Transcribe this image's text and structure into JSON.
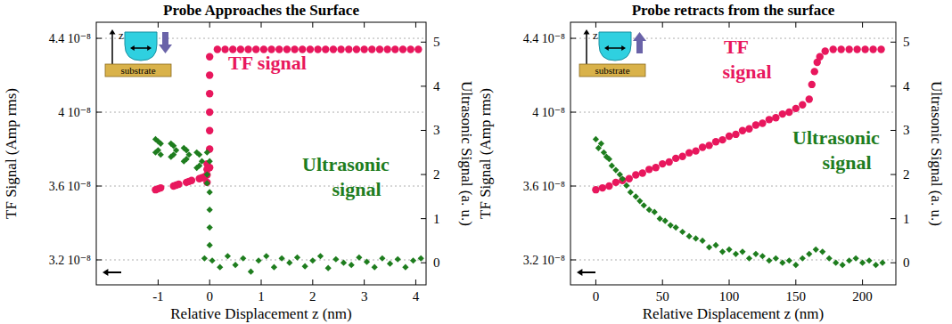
{
  "chart_data": [
    {
      "type": "scatter",
      "title": "Probe Approaches the Surface",
      "x_label": "Relative Displacement  z (nm)",
      "y_label": "TF Signal (Amp rms)",
      "y2_label": "Ultrasonic Signal (a. u.)",
      "xlim": [
        -2.2,
        4.2
      ],
      "xticks": [
        -1,
        0,
        1,
        2,
        3,
        4
      ],
      "ylim": [
        3.065e-08,
        4.487e-08
      ],
      "yticks": [
        {
          "value": 3.2e-08,
          "label": "3.2 10⁻⁸"
        },
        {
          "value": 3.6e-08,
          "label": "3.6 10⁻⁸"
        },
        {
          "value": 4e-08,
          "label": "4 10⁻⁸"
        },
        {
          "value": 4.4e-08,
          "label": "4.4 10⁻⁸"
        }
      ],
      "y2lim": [
        -0.5,
        5.45
      ],
      "y2ticks": [
        0,
        1,
        2,
        3,
        4,
        5
      ],
      "grid": true,
      "annotations": [
        "z",
        "substrate"
      ],
      "series": [
        {
          "name": "TF signal",
          "color": "#e8175d",
          "marker": "circle",
          "x": [
            -1.05,
            -1.0,
            -0.95,
            -0.7,
            -0.65,
            -0.6,
            -0.45,
            -0.4,
            -0.35,
            -0.2,
            -0.15,
            -0.1,
            -0.05,
            -0.05,
            -0.05,
            -0.05,
            0,
            0,
            0,
            0,
            0,
            0,
            0,
            0.15,
            0.3,
            0.45,
            0.6,
            0.75,
            0.9,
            1.05,
            1.2,
            1.35,
            1.5,
            1.65,
            1.8,
            1.95,
            2.1,
            2.25,
            2.4,
            2.55,
            2.7,
            2.85,
            3.0,
            3.15,
            3.3,
            3.45,
            3.6,
            3.75,
            3.9,
            4.05
          ],
          "values": [
            3.58e-08,
            3.585e-08,
            3.59e-08,
            3.6e-08,
            3.605e-08,
            3.61e-08,
            3.62e-08,
            3.625e-08,
            3.63e-08,
            3.64e-08,
            3.645e-08,
            3.65e-08,
            3.62e-08,
            3.66e-08,
            3.69e-08,
            3.72e-08,
            3.7e-08,
            3.8e-08,
            3.9e-08,
            4e-08,
            4.1e-08,
            4.2e-08,
            4.3e-08,
            4.34e-08,
            4.34e-08,
            4.34e-08,
            4.34e-08,
            4.34e-08,
            4.34e-08,
            4.34e-08,
            4.34e-08,
            4.34e-08,
            4.34e-08,
            4.34e-08,
            4.34e-08,
            4.34e-08,
            4.34e-08,
            4.34e-08,
            4.34e-08,
            4.34e-08,
            4.34e-08,
            4.34e-08,
            4.34e-08,
            4.34e-08,
            4.34e-08,
            4.34e-08,
            4.34e-08,
            4.34e-08,
            4.34e-08,
            4.34e-08
          ]
        },
        {
          "name": "Ultrasonic signal",
          "color": "#1e7d1e",
          "marker": "diamond",
          "axis": "y2",
          "x": [
            -1.05,
            -1.05,
            -1.0,
            -1.0,
            -0.95,
            -0.95,
            -0.75,
            -0.75,
            -0.7,
            -0.7,
            -0.65,
            -0.5,
            -0.5,
            -0.45,
            -0.45,
            -0.4,
            -0.25,
            -0.25,
            -0.2,
            -0.2,
            -0.15,
            -0.05,
            -0.05,
            -0.05,
            0,
            0,
            0,
            0,
            0,
            -0.1,
            0.05,
            0.2,
            0.35,
            0.5,
            0.65,
            0.8,
            0.95,
            1.1,
            1.25,
            1.4,
            1.55,
            1.7,
            1.85,
            2.0,
            2.15,
            2.3,
            2.45,
            2.6,
            2.75,
            2.9,
            3.05,
            3.2,
            3.35,
            3.5,
            3.65,
            3.8,
            3.95,
            4.1
          ],
          "values": [
            2.8,
            2.5,
            2.75,
            2.55,
            2.7,
            2.45,
            2.7,
            2.4,
            2.65,
            2.45,
            2.55,
            2.6,
            2.3,
            2.55,
            2.35,
            2.45,
            2.5,
            2.15,
            2.45,
            2.2,
            2.3,
            2.5,
            2.0,
            1.8,
            2.3,
            1.6,
            1.2,
            0.8,
            0.4,
            0.1,
            0.05,
            -0.1,
            0.15,
            -0.05,
            0.1,
            -0.2,
            0.05,
            0.15,
            -0.1,
            0.1,
            0,
            0.12,
            -0.08,
            0.05,
            0.15,
            -0.12,
            0.08,
            0,
            -0.05,
            0.12,
            0.02,
            -0.1,
            0.1,
            -0.02,
            0.08,
            -0.1,
            0.05,
            0.1
          ]
        }
      ]
    },
    {
      "type": "scatter",
      "title": "Probe retracts from the surface",
      "x_label": "Relative Displacement  z (nm)",
      "y_label": "TF Signal (Amp rms)",
      "y2_label": "Ultrasonic Signal (a. u.)",
      "xlim": [
        -19,
        225
      ],
      "xticks": [
        0,
        50,
        100,
        150,
        200
      ],
      "ylim": [
        3.065e-08,
        4.487e-08
      ],
      "yticks": [
        {
          "value": 3.2e-08,
          "label": "3.2 10⁻⁸"
        },
        {
          "value": 3.6e-08,
          "label": "3.6 10⁻⁸"
        },
        {
          "value": 4e-08,
          "label": "4 10⁻⁸"
        },
        {
          "value": 4.4e-08,
          "label": "4.4 10⁻⁸"
        }
      ],
      "y2lim": [
        -0.5,
        5.45
      ],
      "y2ticks": [
        0,
        1,
        2,
        3,
        4,
        5
      ],
      "grid": true,
      "annotations": [
        "z",
        "substrate"
      ],
      "series": [
        {
          "name": "TF signal",
          "color": "#e8175d",
          "marker": "circle",
          "x": [
            0,
            5,
            10,
            15,
            20,
            25,
            30,
            35,
            40,
            45,
            50,
            55,
            60,
            65,
            70,
            75,
            80,
            85,
            90,
            95,
            100,
            105,
            110,
            115,
            120,
            125,
            130,
            135,
            140,
            145,
            150,
            155,
            160,
            162,
            164,
            166,
            168,
            172,
            178,
            184,
            190,
            196,
            202,
            208,
            214
          ],
          "values": [
            3.58e-08,
            3.59e-08,
            3.6e-08,
            3.62e-08,
            3.63e-08,
            3.64e-08,
            3.66e-08,
            3.67e-08,
            3.69e-08,
            3.7e-08,
            3.72e-08,
            3.73e-08,
            3.75e-08,
            3.76e-08,
            3.78e-08,
            3.79e-08,
            3.81e-08,
            3.82e-08,
            3.84e-08,
            3.85e-08,
            3.87e-08,
            3.88e-08,
            3.9e-08,
            3.91e-08,
            3.93e-08,
            3.94e-08,
            3.96e-08,
            3.97e-08,
            3.99e-08,
            4e-08,
            4.02e-08,
            4.04e-08,
            4.07e-08,
            4.15e-08,
            4.22e-08,
            4.27e-08,
            4.3e-08,
            4.33e-08,
            4.34e-08,
            4.34e-08,
            4.34e-08,
            4.34e-08,
            4.34e-08,
            4.34e-08,
            4.34e-08
          ]
        },
        {
          "name": "Ultrasonic signal",
          "color": "#1e7d1e",
          "marker": "diamond",
          "axis": "y2",
          "x": [
            0,
            2,
            4,
            6,
            8,
            10,
            12,
            15,
            18,
            20,
            23,
            26,
            30,
            33,
            36,
            40,
            44,
            48,
            52,
            56,
            60,
            65,
            70,
            75,
            80,
            85,
            90,
            95,
            100,
            105,
            110,
            115,
            120,
            125,
            130,
            135,
            140,
            145,
            150,
            155,
            160,
            165,
            170,
            175,
            180,
            185,
            190,
            195,
            200,
            205,
            210,
            215
          ],
          "values": [
            2.8,
            2.6,
            2.7,
            2.5,
            2.4,
            2.35,
            2.2,
            2.1,
            2.0,
            1.9,
            1.75,
            1.6,
            1.5,
            1.4,
            1.3,
            1.2,
            1.15,
            1.0,
            0.95,
            0.85,
            0.8,
            0.7,
            0.6,
            0.55,
            0.5,
            0.35,
            0.4,
            0.25,
            0.3,
            0.2,
            0.25,
            0.1,
            0.2,
            0.15,
            0.05,
            0.1,
            0.0,
            0.05,
            -0.05,
            0.1,
            0.2,
            0.3,
            0.25,
            0.1,
            0.0,
            -0.05,
            0.05,
            0.1,
            0.0,
            0.05,
            -0.05,
            0.0
          ]
        }
      ]
    }
  ]
}
